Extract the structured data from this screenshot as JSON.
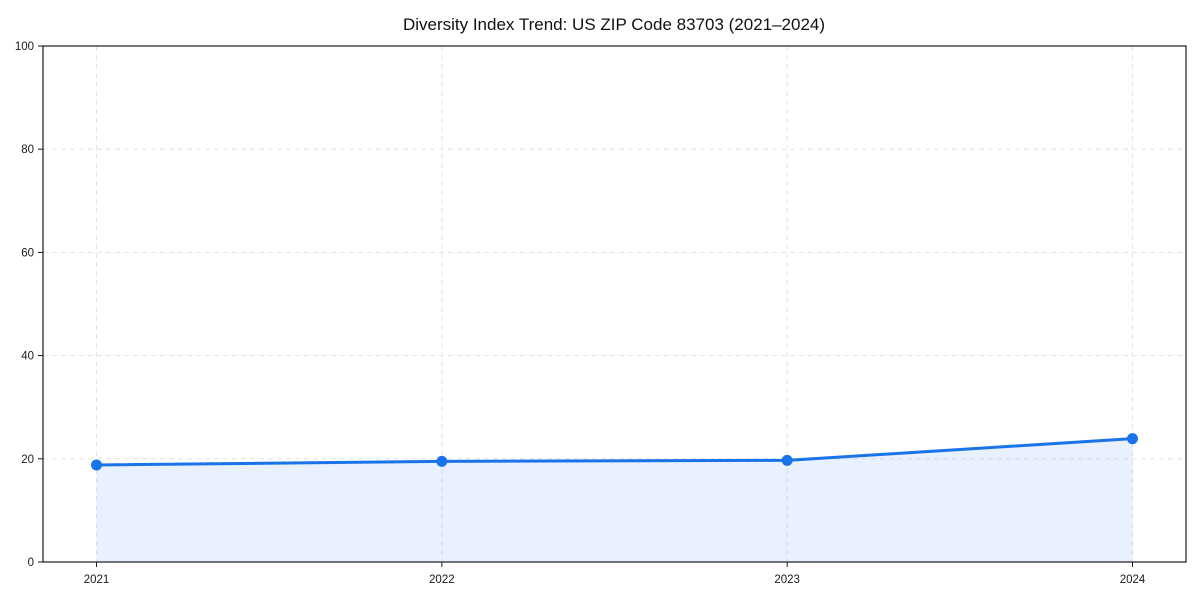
{
  "chart_data": {
    "type": "line",
    "title": "Diversity Index Trend: US ZIP Code 83703 (2021–2024)",
    "x": [
      "2021",
      "2022",
      "2023",
      "2024"
    ],
    "series": [
      {
        "name": "Diversity Index",
        "values": [
          18.8,
          19.5,
          19.7,
          23.9
        ]
      }
    ],
    "xlabel": "",
    "ylabel": "",
    "ylim": [
      0,
      100
    ],
    "yticks": [
      0,
      20,
      40,
      60,
      80,
      100
    ],
    "grid": true,
    "grid_style": "dashed",
    "legend_position": "none",
    "area_fill": true,
    "marker": "circle",
    "colors": {
      "line": "#1a73e8",
      "fill": "#1a73e8",
      "fill_opacity": 0.1,
      "grid": "#e4e4e4",
      "spine": "#1a1a1a",
      "text": "#1a1a1a",
      "background": "#ffffff"
    }
  }
}
